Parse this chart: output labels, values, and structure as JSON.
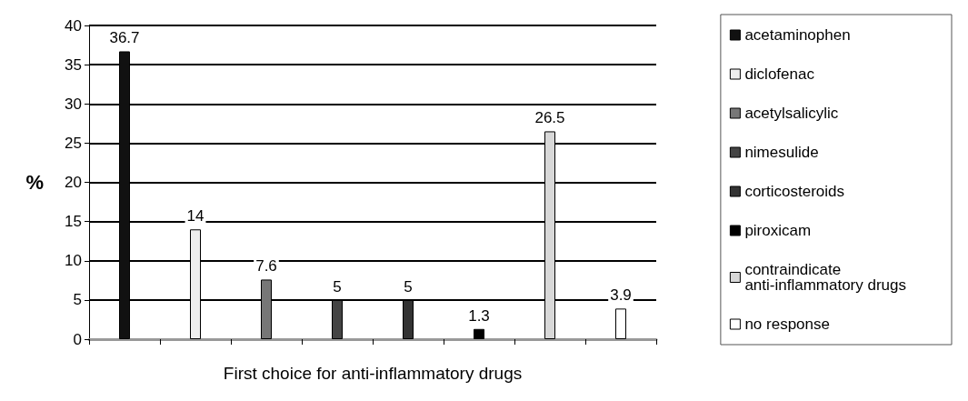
{
  "chart_data": {
    "type": "bar",
    "xlabel": "First choice for anti-inflammatory drugs",
    "ylabel": "%",
    "categories": [
      null,
      null,
      null,
      null,
      null,
      null,
      null,
      null
    ],
    "series": [
      {
        "name": "acetaminophen",
        "color": "#111111",
        "values": [
          36.7,
          null,
          null,
          null,
          null,
          null,
          null,
          null
        ]
      },
      {
        "name": "diclofenac",
        "color": "#eeeeee",
        "values": [
          null,
          14,
          null,
          null,
          null,
          null,
          null,
          null
        ]
      },
      {
        "name": "acetylsalicylic",
        "color": "#777777",
        "values": [
          null,
          null,
          7.6,
          null,
          null,
          null,
          null,
          null
        ]
      },
      {
        "name": "nimesulide",
        "color": "#444444",
        "values": [
          null,
          null,
          null,
          5,
          null,
          null,
          null,
          null
        ]
      },
      {
        "name": "corticosteroids",
        "color": "#333333",
        "values": [
          null,
          null,
          null,
          null,
          5,
          null,
          null,
          null
        ]
      },
      {
        "name": "piroxicam",
        "color": "#000000",
        "values": [
          null,
          null,
          null,
          null,
          null,
          1.3,
          null,
          null
        ]
      },
      {
        "name": "contraindicate anti-inflammatory drugs",
        "color": "#d8d8d8",
        "values": [
          null,
          null,
          null,
          null,
          null,
          null,
          26.5,
          null
        ]
      },
      {
        "name": "no response",
        "color": "#ffffff",
        "values": [
          null,
          null,
          null,
          null,
          null,
          null,
          null,
          3.9
        ]
      }
    ],
    "ylim": [
      0,
      40
    ],
    "yticks": [
      0,
      5,
      10,
      15,
      20,
      25,
      30,
      35,
      40
    ],
    "grid": "y",
    "legend": "right",
    "data_labels": true
  }
}
